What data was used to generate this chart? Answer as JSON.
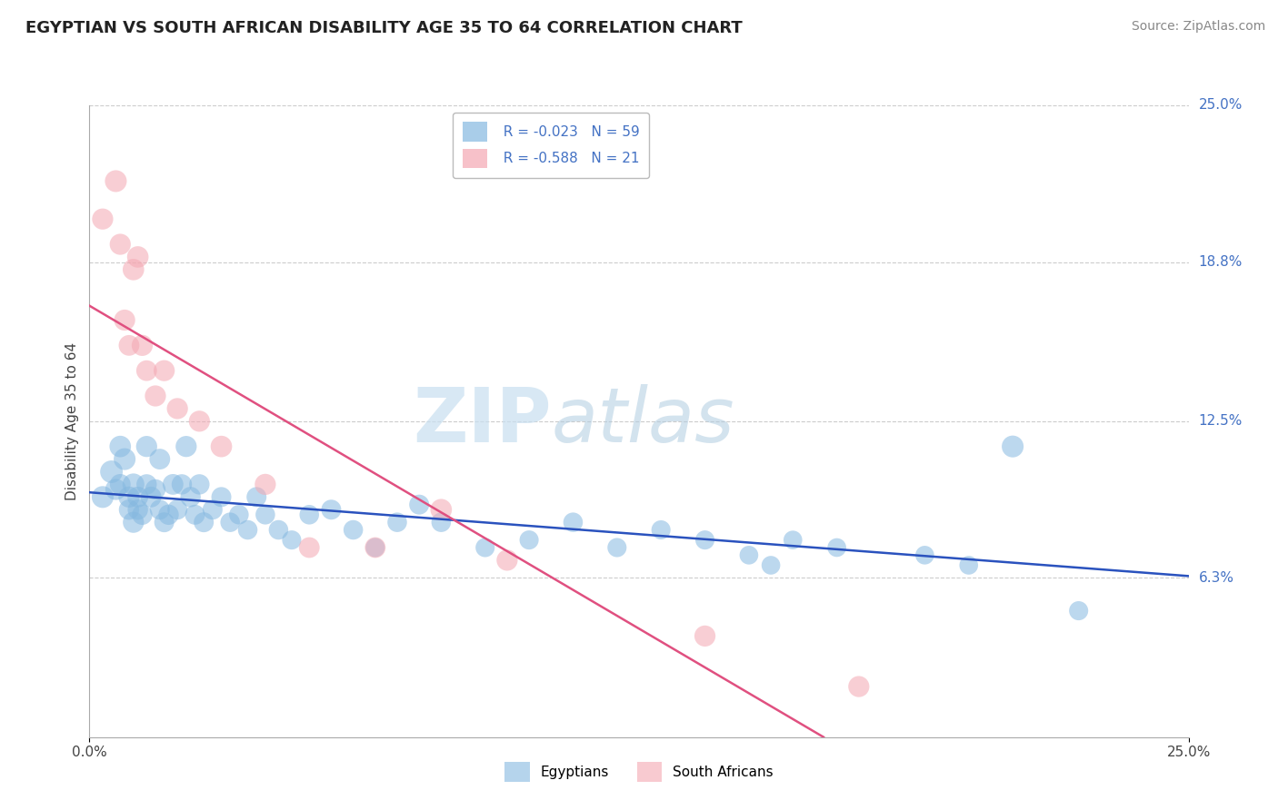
{
  "title": "EGYPTIAN VS SOUTH AFRICAN DISABILITY AGE 35 TO 64 CORRELATION CHART",
  "source": "Source: ZipAtlas.com",
  "ylabel": "Disability Age 35 to 64",
  "xlim": [
    0.0,
    0.25
  ],
  "ylim": [
    0.0,
    0.25
  ],
  "ytick_vals": [
    0.063,
    0.125,
    0.188,
    0.25
  ],
  "ytick_labels": [
    "6.3%",
    "12.5%",
    "18.8%",
    "25.0%"
  ],
  "xtick_vals": [
    0.0,
    0.25
  ],
  "xtick_labels": [
    "0.0%",
    "25.0%"
  ],
  "grid_color": "#cccccc",
  "background_color": "#ffffff",
  "watermark_zip": "ZIP",
  "watermark_atlas": "atlas",
  "legend_r1": "R = -0.023",
  "legend_n1": "N = 59",
  "legend_r2": "R = -0.588",
  "legend_n2": "N = 21",
  "blue_color": "#85b8e0",
  "pink_color": "#f4a7b2",
  "line_blue": "#2a52be",
  "line_pink": "#e05080",
  "egyptians_x": [
    0.003,
    0.005,
    0.006,
    0.007,
    0.007,
    0.008,
    0.009,
    0.009,
    0.01,
    0.01,
    0.011,
    0.011,
    0.012,
    0.013,
    0.013,
    0.014,
    0.015,
    0.016,
    0.016,
    0.017,
    0.018,
    0.019,
    0.02,
    0.021,
    0.022,
    0.023,
    0.024,
    0.025,
    0.026,
    0.028,
    0.03,
    0.032,
    0.034,
    0.036,
    0.038,
    0.04,
    0.043,
    0.046,
    0.05,
    0.055,
    0.06,
    0.065,
    0.07,
    0.075,
    0.08,
    0.09,
    0.1,
    0.11,
    0.12,
    0.13,
    0.14,
    0.15,
    0.155,
    0.16,
    0.17,
    0.19,
    0.2,
    0.21,
    0.225
  ],
  "egyptians_y": [
    0.095,
    0.105,
    0.098,
    0.115,
    0.1,
    0.11,
    0.095,
    0.09,
    0.085,
    0.1,
    0.095,
    0.09,
    0.088,
    0.115,
    0.1,
    0.095,
    0.098,
    0.09,
    0.11,
    0.085,
    0.088,
    0.1,
    0.09,
    0.1,
    0.115,
    0.095,
    0.088,
    0.1,
    0.085,
    0.09,
    0.095,
    0.085,
    0.088,
    0.082,
    0.095,
    0.088,
    0.082,
    0.078,
    0.088,
    0.09,
    0.082,
    0.075,
    0.085,
    0.092,
    0.085,
    0.075,
    0.078,
    0.085,
    0.075,
    0.082,
    0.078,
    0.072,
    0.068,
    0.078,
    0.075,
    0.072,
    0.068,
    0.115,
    0.05
  ],
  "egyptians_size": [
    300,
    320,
    280,
    290,
    270,
    300,
    280,
    260,
    280,
    300,
    270,
    260,
    260,
    280,
    260,
    270,
    260,
    250,
    270,
    250,
    260,
    270,
    250,
    260,
    280,
    260,
    250,
    260,
    250,
    250,
    250,
    240,
    240,
    240,
    250,
    240,
    240,
    230,
    240,
    250,
    240,
    230,
    240,
    250,
    240,
    230,
    230,
    240,
    230,
    230,
    230,
    220,
    220,
    220,
    220,
    220,
    220,
    300,
    230
  ],
  "south_africans_x": [
    0.003,
    0.006,
    0.007,
    0.008,
    0.009,
    0.01,
    0.011,
    0.012,
    0.013,
    0.015,
    0.017,
    0.02,
    0.025,
    0.03,
    0.04,
    0.05,
    0.065,
    0.08,
    0.095,
    0.14,
    0.175
  ],
  "south_africans_y": [
    0.205,
    0.22,
    0.195,
    0.165,
    0.155,
    0.185,
    0.19,
    0.155,
    0.145,
    0.135,
    0.145,
    0.13,
    0.125,
    0.115,
    0.1,
    0.075,
    0.075,
    0.09,
    0.07,
    0.04,
    0.02
  ],
  "south_africans_size": [
    280,
    300,
    280,
    280,
    270,
    290,
    290,
    280,
    270,
    280,
    280,
    280,
    280,
    290,
    280,
    270,
    270,
    290,
    280,
    280,
    280
  ]
}
